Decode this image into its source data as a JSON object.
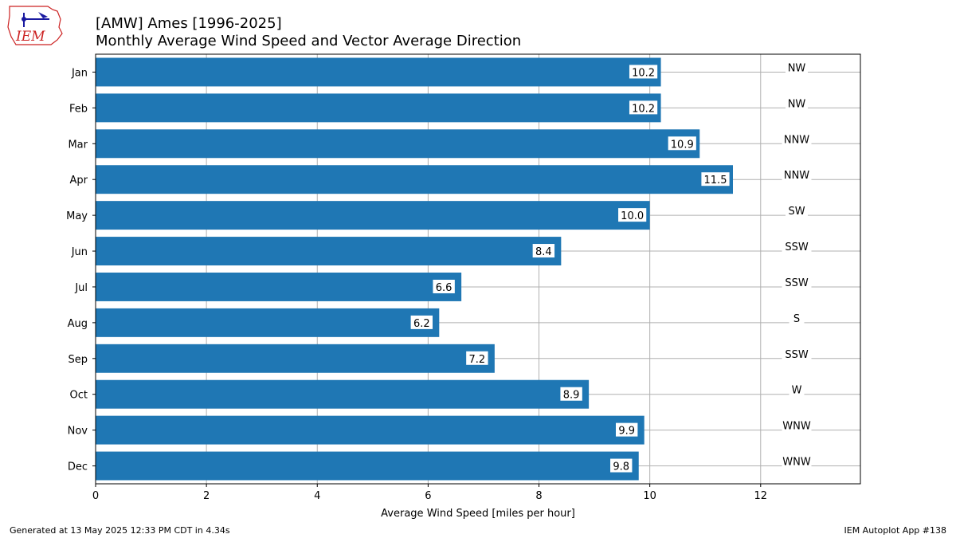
{
  "header": {
    "title_line1": "[AMW] Ames [1996-2025]",
    "title_line2": "Monthly Average Wind Speed and Vector Average Direction",
    "logo_text": "IEM"
  },
  "footer": {
    "generated": "Generated at 13 May 2025 12:33 PM CDT in 4.34s",
    "app": "IEM Autoplot App #138"
  },
  "colors": {
    "bar": "#1f77b4",
    "grid": "#b0b0b0",
    "logo_red": "#cc2222",
    "logo_blue": "#1a1aa0"
  },
  "chart_data": {
    "type": "bar",
    "orientation": "horizontal",
    "categories": [
      "Jan",
      "Feb",
      "Mar",
      "Apr",
      "May",
      "Jun",
      "Jul",
      "Aug",
      "Sep",
      "Oct",
      "Nov",
      "Dec"
    ],
    "values": [
      10.2,
      10.2,
      10.9,
      11.5,
      10.0,
      8.4,
      6.6,
      6.2,
      7.2,
      8.9,
      9.9,
      9.8
    ],
    "value_labels": [
      "10.2",
      "10.2",
      "10.9",
      "11.5",
      "10.0",
      "8.4",
      "6.6",
      "6.2",
      "7.2",
      "8.9",
      "9.9",
      "9.8"
    ],
    "directions": [
      "NW",
      "NW",
      "NNW",
      "NNW",
      "SW",
      "SSW",
      "SSW",
      "S",
      "SSW",
      "W",
      "WNW",
      "WNW"
    ],
    "xlabel": "Average Wind Speed [miles per hour]",
    "ylabel": "",
    "xlim": [
      0,
      13.8
    ],
    "xticks": [
      0,
      2,
      4,
      6,
      8,
      10,
      12
    ],
    "xtick_labels": [
      "0",
      "2",
      "4",
      "6",
      "8",
      "10",
      "12"
    ],
    "grid": true
  }
}
